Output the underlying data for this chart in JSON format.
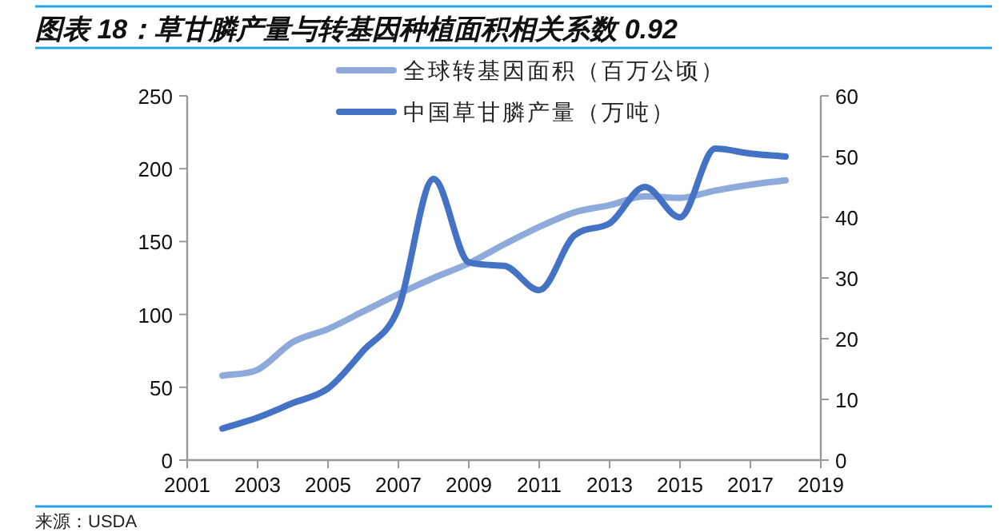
{
  "chart_data": {
    "type": "line",
    "title": "图表 18：草甘膦产量与转基因种植面积相关系数 0.92",
    "x": [
      2002,
      2003,
      2004,
      2005,
      2006,
      2007,
      2008,
      2009,
      2010,
      2011,
      2012,
      2013,
      2014,
      2015,
      2016,
      2017,
      2018
    ],
    "series": [
      {
        "name": "全球转基因面积（百万公顷）",
        "color": "#8eaadb",
        "values": [
          58,
          62,
          81,
          90,
          102,
          114,
          125,
          135,
          148,
          160,
          170,
          175,
          181,
          180,
          185,
          189,
          192
        ]
      },
      {
        "name": "中国草甘膦产量（万吨）",
        "color": "#4472c4",
        "axis": "y2",
        "values": [
          5.2,
          7,
          9.4,
          11.8,
          18,
          25,
          46.3,
          32.6,
          32,
          28,
          37,
          39,
          45,
          40,
          51.3,
          50.5,
          50
        ]
      }
    ],
    "xlim": [
      2001,
      2019
    ],
    "xticks": [
      2001,
      2003,
      2005,
      2007,
      2009,
      2011,
      2013,
      2015,
      2017,
      2019
    ],
    "ylim": [
      0,
      250
    ],
    "yticks": [
      0,
      50,
      100,
      150,
      200,
      250
    ],
    "y2lim": [
      0,
      60
    ],
    "y2ticks": [
      0,
      10,
      20,
      30,
      40,
      50,
      60
    ],
    "legend": "top",
    "grid": false,
    "marker": "none",
    "line_style": "solid",
    "annotations": [
      "来源：USDA"
    ]
  }
}
